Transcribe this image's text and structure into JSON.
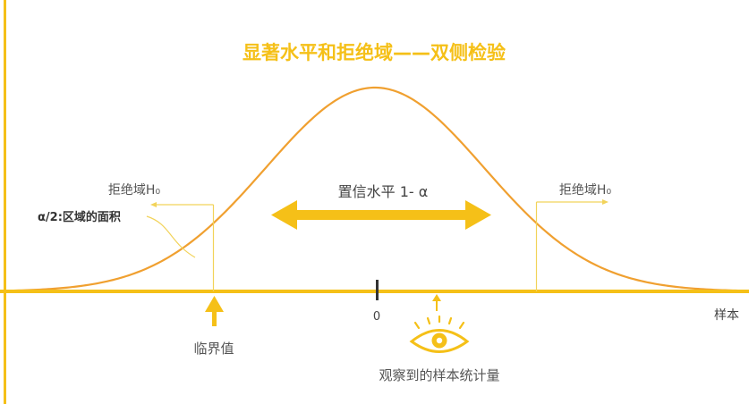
{
  "title": "显著水平和拒绝域——双侧检验",
  "confidence_label": "置信水平  1- α",
  "left_region_label": "拒绝域H₀",
  "right_region_label": "拒绝域H₀",
  "alpha_label": "α/2:区域的面积",
  "zero_label": "0",
  "axis_label": "样本",
  "critical_label": "临界值",
  "observed_label": "观察到的样本统计量",
  "eye_icon": "eye-icon",
  "colors": {
    "accent": "#f5c018",
    "curve": "#f0a030",
    "text": "#555555",
    "thin_line": "#f2d35a"
  }
}
